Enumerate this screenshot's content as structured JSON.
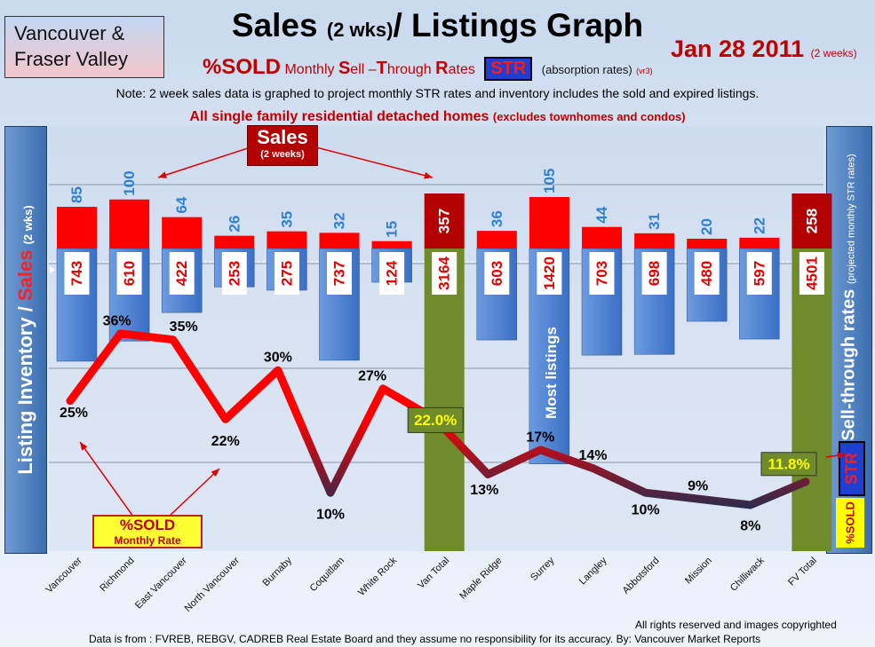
{
  "header": {
    "region_line1": "Vancouver &",
    "region_line2": "Fraser Valley",
    "title_main": "Sales",
    "title_small": "(2 wks)",
    "title_rest": "/ Listings Graph",
    "date": "Jan 28 2011",
    "date_note": "(2 weeks)",
    "subtitle_sold": "%SOLD",
    "subtitle_monthly": "Monthly",
    "subtitle_s": "S",
    "subtitle_ell": "ell –",
    "subtitle_t": "T",
    "subtitle_hrough": "hrough",
    "subtitle_r": "R",
    "subtitle_ates": "ates",
    "str_label": "STR",
    "absorption": "(absorption rates)",
    "version": "(vr3)",
    "note": "Note: 2 week sales data is graphed to project monthly STR rates and inventory includes the sold and expired listings.",
    "detached_main": "All single family residential detached homes",
    "detached_small": "(excludes townhomes and condos)"
  },
  "side_labels": {
    "left_listing": "Listing Inventory /",
    "left_sales": "Sales",
    "left_wks": "(2 wks)",
    "right_main": "Sell-through rates",
    "right_small": "(projected monthly STR rates)",
    "str": "STR",
    "sold": "%SOLD"
  },
  "callouts": {
    "sales_title": "Sales",
    "sales_sub": "(2 weeks)",
    "sold_legend_title": "%SOLD",
    "sold_legend_sub": "Monthly Rate",
    "most_listings": "Most listings"
  },
  "footer": {
    "rights": "All rights reserved and  images copyrighted",
    "source": "Data is from : FVREB, REBGV, CADREB Real Estate Board and they assume no responsibility for its accuracy. By: Vancouver Market Reports"
  },
  "colors": {
    "sales_bar": "#ff0000",
    "sales_total_bar": "#b30000",
    "inventory_bar": "#3a6fc4",
    "total_bar": "#6f8b2c",
    "line_high": "#ff0000",
    "line_low": "#1b2f55",
    "highlight_box": "#6f8b2c",
    "highlight_text": "#ffff00"
  },
  "chart_data": {
    "type": "bar",
    "categories": [
      "Vancouver",
      "Richmond",
      "East Vancouver",
      "North Vancouver",
      "Burnaby",
      "Coquitlam",
      "White Rock",
      "Van Total",
      "Maple Ridge",
      "Surrey",
      "Langley",
      "Abbotsford",
      "Mission",
      "Chilliwack",
      "FV Total"
    ],
    "series": [
      {
        "name": "Sales",
        "values": [
          85,
          100,
          64,
          26,
          35,
          32,
          15,
          357,
          36,
          105,
          44,
          31,
          20,
          22,
          258
        ]
      },
      {
        "name": "Listing Inventory",
        "values": [
          743,
          610,
          422,
          253,
          275,
          737,
          124,
          3164,
          603,
          1420,
          703,
          698,
          480,
          597,
          4501
        ]
      },
      {
        "name": "%SOLD",
        "values": [
          25,
          36,
          35,
          22,
          30,
          10,
          27,
          22.0,
          13,
          17,
          14,
          10,
          9,
          8,
          11.8
        ]
      }
    ],
    "sold_labels": [
      "25%",
      "36%",
      "35%",
      "22%",
      "30%",
      "10%",
      "27%",
      "22.0%",
      "13%",
      "17%",
      "14%",
      "10%",
      "9%",
      "8%",
      "11.8%"
    ],
    "totals_indices": [
      7,
      14
    ]
  }
}
